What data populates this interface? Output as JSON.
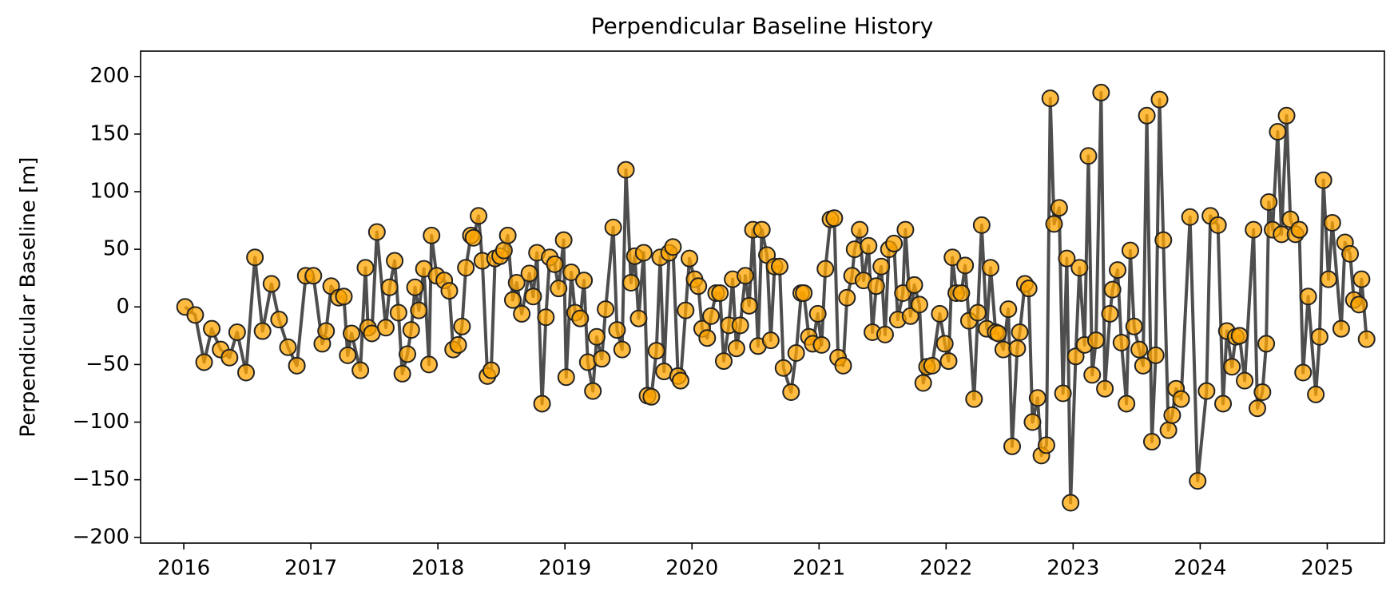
{
  "chart_data": {
    "type": "line",
    "title": "Perpendicular Baseline History",
    "y_label": "Perpendicular Baseline [m]",
    "line_color": "#444444",
    "marker_color": "#ffa500",
    "marker_edge_color": "#222222",
    "xlim": [
      2015.66,
      2025.45
    ],
    "xticks": [
      2016,
      2017,
      2018,
      2019,
      2020,
      2021,
      2022,
      2023,
      2024,
      2025
    ],
    "ylim": [
      -205,
      222
    ],
    "yticks": [
      {
        "value": -200,
        "label": "−200"
      },
      {
        "value": -150,
        "label": "−150"
      },
      {
        "value": -100,
        "label": "−100"
      },
      {
        "value": -50,
        "label": "−50"
      },
      0,
      50,
      100,
      150,
      200
    ],
    "x": [
      2016.01,
      2016.09,
      2016.16,
      2016.22,
      2016.29,
      2016.36,
      2016.42,
      2016.49,
      2016.56,
      2016.62,
      2016.69,
      2016.75,
      2016.82,
      2016.89,
      2016.96,
      2017.02,
      2017.09,
      2017.12,
      2017.16,
      2017.22,
      2017.26,
      2017.29,
      2017.32,
      2017.39,
      2017.43,
      2017.45,
      2017.48,
      2017.52,
      2017.59,
      2017.62,
      2017.66,
      2017.69,
      2017.72,
      2017.76,
      2017.79,
      2017.82,
      2017.85,
      2017.89,
      2017.93,
      2017.95,
      2017.99,
      2018.05,
      2018.09,
      2018.12,
      2018.16,
      2018.19,
      2018.22,
      2018.26,
      2018.28,
      2018.32,
      2018.35,
      2018.39,
      2018.42,
      2018.45,
      2018.49,
      2018.52,
      2018.55,
      2018.59,
      2018.62,
      2018.66,
      2018.72,
      2018.75,
      2018.78,
      2018.82,
      2018.85,
      2018.88,
      2018.92,
      2018.95,
      2018.99,
      2019.01,
      2019.05,
      2019.08,
      2019.12,
      2019.15,
      2019.18,
      2019.22,
      2019.25,
      2019.29,
      2019.32,
      2019.38,
      2019.41,
      2019.45,
      2019.48,
      2019.52,
      2019.55,
      2019.58,
      2019.62,
      2019.65,
      2019.68,
      2019.72,
      2019.75,
      2019.78,
      2019.82,
      2019.85,
      2019.89,
      2019.91,
      2019.95,
      2019.98,
      2020.02,
      2020.05,
      2020.08,
      2020.12,
      2020.15,
      2020.19,
      2020.22,
      2020.25,
      2020.29,
      2020.32,
      2020.35,
      2020.38,
      2020.42,
      2020.45,
      2020.48,
      2020.52,
      2020.55,
      2020.59,
      2020.62,
      2020.65,
      2020.69,
      2020.72,
      2020.78,
      2020.82,
      2020.86,
      2020.88,
      2020.92,
      2020.95,
      2020.99,
      2021.02,
      2021.05,
      2021.09,
      2021.12,
      2021.15,
      2021.19,
      2021.22,
      2021.26,
      2021.28,
      2021.32,
      2021.35,
      2021.39,
      2021.42,
      2021.45,
      2021.49,
      2021.52,
      2021.55,
      2021.59,
      2021.62,
      2021.66,
      2021.68,
      2021.72,
      2021.75,
      2021.79,
      2021.82,
      2021.85,
      2021.89,
      2021.95,
      2021.99,
      2022.02,
      2022.05,
      2022.08,
      2022.12,
      2022.15,
      2022.18,
      2022.22,
      2022.25,
      2022.28,
      2022.32,
      2022.35,
      2022.39,
      2022.41,
      2022.45,
      2022.49,
      2022.52,
      2022.56,
      2022.58,
      2022.62,
      2022.65,
      2022.68,
      2022.72,
      2022.75,
      2022.79,
      2022.82,
      2022.85,
      2022.89,
      2022.92,
      2022.95,
      2022.98,
      2023.02,
      2023.05,
      2023.09,
      2023.12,
      2023.15,
      2023.18,
      2023.22,
      2023.25,
      2023.29,
      2023.31,
      2023.35,
      2023.38,
      2023.42,
      2023.45,
      2023.48,
      2023.52,
      2023.55,
      2023.58,
      2023.62,
      2023.65,
      2023.68,
      2023.71,
      2023.75,
      2023.78,
      2023.81,
      2023.85,
      2023.92,
      2023.98,
      2024.05,
      2024.08,
      2024.14,
      2024.18,
      2024.21,
      2024.25,
      2024.28,
      2024.31,
      2024.35,
      2024.42,
      2024.45,
      2024.49,
      2024.52,
      2024.54,
      2024.57,
      2024.61,
      2024.64,
      2024.68,
      2024.71,
      2024.75,
      2024.78,
      2024.81,
      2024.85,
      2024.91,
      2024.94,
      2024.97,
      2025.01,
      2025.04,
      2025.11,
      2025.14,
      2025.18,
      2025.21,
      2025.25,
      2025.27,
      2025.31
    ],
    "values": [
      0,
      -7,
      -48,
      -19,
      -37,
      -44,
      -22,
      -57,
      43,
      -21,
      20,
      -11,
      -35,
      -51,
      27,
      27,
      -32,
      -21,
      18,
      8,
      9,
      -42,
      -23,
      -55,
      34,
      -18,
      -23,
      65,
      -18,
      17,
      40,
      -5,
      -58,
      -41,
      -20,
      17,
      -3,
      33,
      -50,
      62,
      27,
      23,
      14,
      -37,
      -33,
      -17,
      34,
      62,
      60,
      79,
      40,
      -60,
      -55,
      42,
      44,
      49,
      62,
      6,
      21,
      -6,
      29,
      9,
      47,
      -84,
      -9,
      43,
      37,
      16,
      58,
      -61,
      30,
      -5,
      -10,
      23,
      -48,
      -73,
      -26,
      -45,
      -2,
      69,
      -20,
      -37,
      119,
      21,
      44,
      -10,
      47,
      -77,
      -78,
      -38,
      43,
      -56,
      47,
      52,
      -60,
      -64,
      -3,
      42,
      24,
      18,
      -19,
      -27,
      -8,
      12,
      12,
      -47,
      -16,
      24,
      -36,
      -16,
      27,
      1,
      67,
      -34,
      67,
      45,
      -29,
      35,
      35,
      -53,
      -74,
      -40,
      12,
      12,
      -26,
      -32,
      -6,
      -33,
      33,
      76,
      77,
      -44,
      -51,
      8,
      27,
      50,
      67,
      23,
      53,
      -22,
      18,
      35,
      -24,
      50,
      55,
      -11,
      12,
      67,
      -8,
      19,
      2,
      -66,
      -52,
      -51,
      -6,
      -32,
      -47,
      43,
      12,
      12,
      36,
      -12,
      -80,
      -5,
      71,
      -19,
      34,
      -22,
      -23,
      -37,
      -2,
      -121,
      -36,
      -22,
      20,
      16,
      -100,
      -79,
      -129,
      -120,
      181,
      72,
      86,
      -75,
      42,
      -170,
      -43,
      34,
      -33,
      131,
      -59,
      -29,
      186,
      -71,
      -6,
      15,
      32,
      -31,
      -84,
      49,
      -17,
      -37,
      -51,
      166,
      -117,
      -42,
      180,
      58,
      -107,
      -94,
      -71,
      -80,
      78,
      -151,
      -73,
      79,
      71,
      -84,
      -21,
      -52,
      -26,
      -25,
      -64,
      67,
      -88,
      -74,
      -32,
      91,
      67,
      152,
      63,
      166,
      76,
      63,
      67,
      -57,
      9,
      -76,
      -26,
      110,
      24,
      73,
      -19,
      56,
      46,
      6,
      2,
      24,
      -28
    ]
  }
}
